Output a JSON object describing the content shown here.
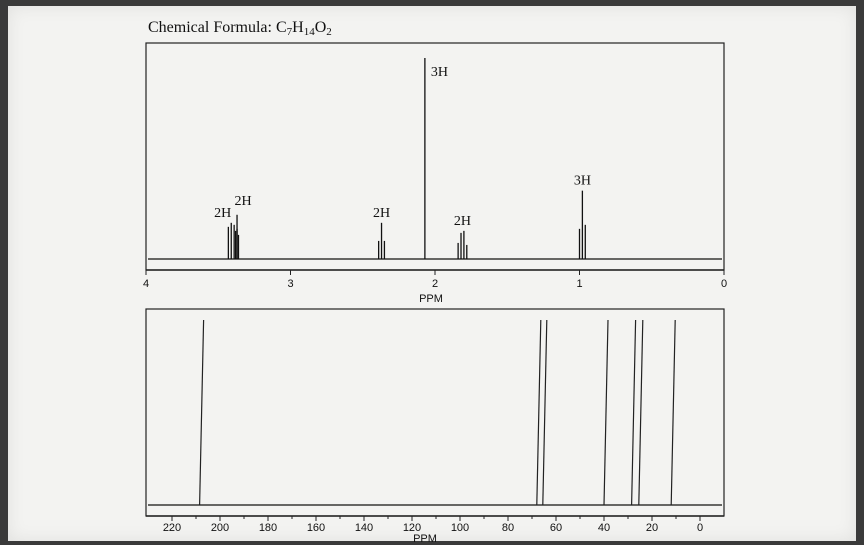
{
  "header": {
    "formula_prefix": "Chemical Formula: ",
    "formula_parts": [
      {
        "text": "C",
        "sub": false
      },
      {
        "text": "7",
        "sub": true
      },
      {
        "text": "H",
        "sub": false
      },
      {
        "text": "14",
        "sub": true
      },
      {
        "text": "O",
        "sub": false
      },
      {
        "text": "2",
        "sub": true
      }
    ]
  },
  "chart_data": [
    {
      "type": "line",
      "spectrum": "1H NMR",
      "xlabel": "PPM",
      "xlim": [
        4,
        0
      ],
      "xticks": [
        4,
        3,
        2,
        1,
        0
      ],
      "peaks": [
        {
          "shift": 3.4,
          "label": "2H",
          "lines": [
            3.43,
            3.41,
            3.39,
            3.37
          ],
          "heights": [
            0.16,
            0.18,
            0.17,
            0.15
          ]
        },
        {
          "shift": 3.37,
          "label": "2H",
          "lines": [
            3.38,
            3.37,
            3.36
          ],
          "heights": [
            0.14,
            0.22,
            0.12
          ]
        },
        {
          "shift": 2.37,
          "label": "2H",
          "lines": [
            2.39,
            2.37,
            2.35
          ],
          "heights": [
            0.09,
            0.18,
            0.09
          ]
        },
        {
          "shift": 2.07,
          "label": "3H",
          "lines": [
            2.07
          ],
          "heights": [
            1.0
          ]
        },
        {
          "shift": 1.8,
          "label": "2H",
          "lines": [
            1.84,
            1.82,
            1.8,
            1.78
          ],
          "heights": [
            0.08,
            0.13,
            0.14,
            0.07
          ]
        },
        {
          "shift": 0.98,
          "label": "3H",
          "lines": [
            1.0,
            0.98,
            0.96
          ],
          "heights": [
            0.15,
            0.34,
            0.17
          ]
        }
      ]
    },
    {
      "type": "line",
      "spectrum": "13C NMR",
      "xlabel": "PPM",
      "xlim": [
        225,
        0
      ],
      "xticks": [
        220,
        200,
        180,
        160,
        140,
        120,
        100,
        80,
        60,
        40,
        20,
        0
      ],
      "peaks": [
        208.5,
        68.0,
        65.5,
        40.0,
        28.5,
        25.5,
        12.0
      ]
    }
  ]
}
